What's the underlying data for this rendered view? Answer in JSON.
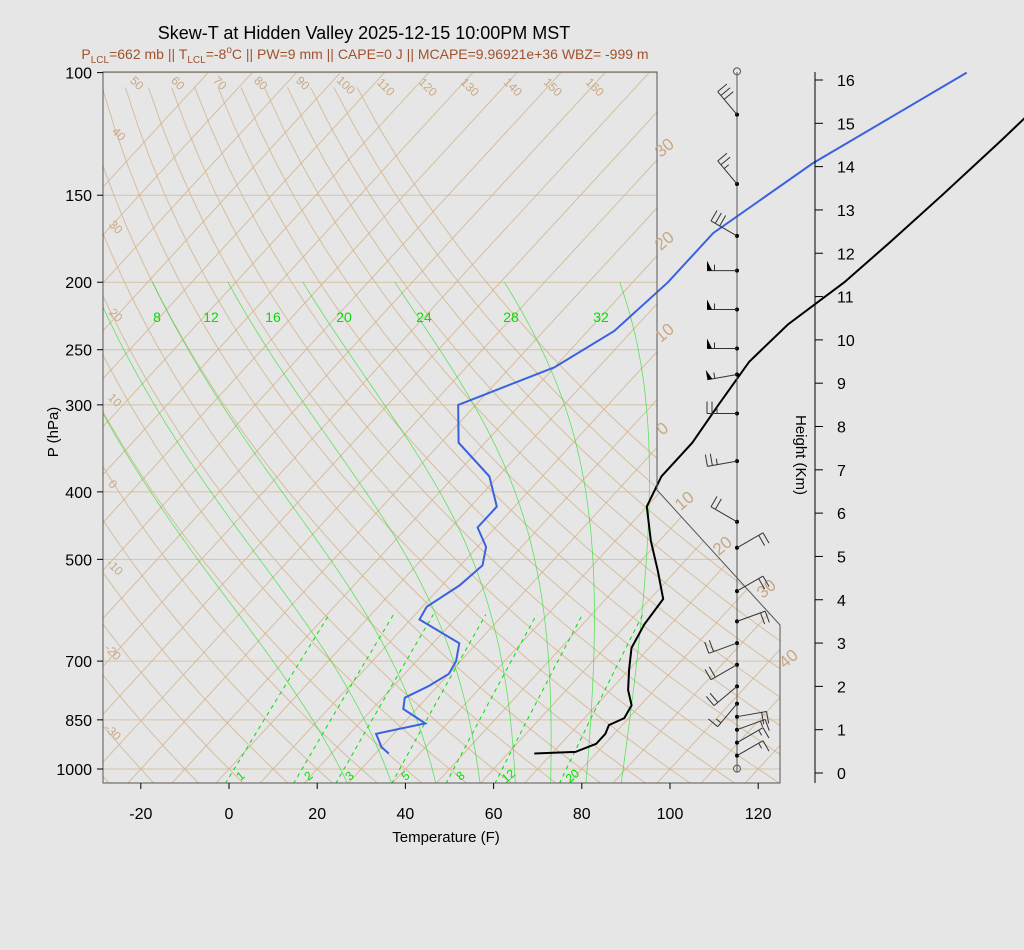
{
  "title": "Skew-T at Hidden Valley 2025-12-15 10:00PM MST",
  "subtitle": {
    "p_lcl_label": "P",
    "p_lcl_sub": "LCL",
    "p_lcl_value": "=662 mb || T",
    "t_lcl_sub": "LCL",
    "t_lcl_value": "=-8",
    "deg": "o",
    "rest": "C || PW=9 mm || CAPE=0 J || MCAPE=9.96921e+36 WBZ= -999 m"
  },
  "colors": {
    "background": "#e6e6e6",
    "temperature": "#000000",
    "dewpoint": "#3a62e0",
    "isotherm_adiabat": "#d2b48c",
    "mixing_ratio": "#00e000"
  },
  "chart_data": {
    "type": "line",
    "xlabel": "Temperature (F)",
    "ylabel": "P (hPa)",
    "y2label": "Height (Km)",
    "xlim": [
      -28,
      125
    ],
    "ylim": [
      1025,
      100
    ],
    "y_scale": "log",
    "x_ticks": [
      -20,
      0,
      20,
      40,
      60,
      80,
      100,
      120
    ],
    "p_ticks": [
      100,
      150,
      200,
      250,
      300,
      400,
      500,
      700,
      850,
      1000
    ],
    "height_ticks_km": [
      {
        "km": 0,
        "p": 1000
      },
      {
        "km": 1,
        "p": 915
      },
      {
        "km": 2,
        "p": 825
      },
      {
        "km": 3,
        "p": 700
      },
      {
        "km": 4,
        "p": 630
      },
      {
        "km": 5,
        "p": 540
      },
      {
        "km": 6,
        "p": 465
      },
      {
        "km": 7,
        "p": 400
      },
      {
        "km": 8,
        "p": 360
      },
      {
        "km": 9,
        "p": 300
      },
      {
        "km": 10,
        "p": 268
      },
      {
        "km": 11,
        "p": 236
      },
      {
        "km": 12,
        "p": 208
      },
      {
        "km": 13,
        "p": 172
      },
      {
        "km": 14,
        "p": 142
      },
      {
        "km": 15,
        "p": 118
      },
      {
        "km": 16,
        "p": 102
      }
    ],
    "isotherm_labels": [
      "-30",
      "-20",
      "-10",
      "0",
      "10",
      "20",
      "30",
      "40",
      "50",
      "60",
      "70",
      "80",
      "90",
      "100",
      "110",
      "120",
      "130",
      "140",
      "150",
      "160"
    ],
    "mixing_ratio_top_labels": [
      "8",
      "12",
      "16",
      "20",
      "24",
      "28",
      "32"
    ],
    "mixing_ratio_bottom_labels": [
      "1",
      "2",
      "3",
      "5",
      "8",
      "12",
      "20"
    ],
    "series": [
      {
        "name": "",
        "values": [
          {
            "p": 100,
            "t": 46
          },
          {
            "p": 125,
            "t": 44
          },
          {
            "p": 150,
            "t": 42
          },
          {
            "p": 175,
            "t": 40
          },
          {
            "p": 200,
            "t": 38
          },
          {
            "p": 230,
            "t": 34
          },
          {
            "p": 260,
            "t": 33
          },
          {
            "p": 300,
            "t": 35
          },
          {
            "p": 340,
            "t": 37
          },
          {
            "p": 380,
            "t": 37
          },
          {
            "p": 420,
            "t": 40
          },
          {
            "p": 470,
            "t": 48
          },
          {
            "p": 520,
            "t": 56
          },
          {
            "p": 570,
            "t": 63
          },
          {
            "p": 620,
            "t": 64
          },
          {
            "p": 670,
            "t": 66
          },
          {
            "p": 720,
            "t": 70
          },
          {
            "p": 770,
            "t": 74
          },
          {
            "p": 810,
            "t": 78
          },
          {
            "p": 845,
            "t": 79
          },
          {
            "p": 865,
            "t": 77
          },
          {
            "p": 890,
            "t": 78
          },
          {
            "p": 920,
            "t": 78
          },
          {
            "p": 945,
            "t": 75
          },
          {
            "p": 950,
            "t": 66
          }
        ]
      },
      {
        "name": "",
        "values": [
          {
            "p": 100,
            "t": 22
          },
          {
            "p": 135,
            "t": 6
          },
          {
            "p": 170,
            "t": -2
          },
          {
            "p": 200,
            "t": -2
          },
          {
            "p": 235,
            "t": -4
          },
          {
            "p": 265,
            "t": -10
          },
          {
            "p": 300,
            "t": -24
          },
          {
            "p": 340,
            "t": -16
          },
          {
            "p": 380,
            "t": -2
          },
          {
            "p": 420,
            "t": 6
          },
          {
            "p": 450,
            "t": 6
          },
          {
            "p": 480,
            "t": 12
          },
          {
            "p": 510,
            "t": 15
          },
          {
            "p": 545,
            "t": 14
          },
          {
            "p": 585,
            "t": 11
          },
          {
            "p": 610,
            "t": 12
          },
          {
            "p": 660,
            "t": 26
          },
          {
            "p": 700,
            "t": 29
          },
          {
            "p": 730,
            "t": 30
          },
          {
            "p": 760,
            "t": 28
          },
          {
            "p": 790,
            "t": 25
          },
          {
            "p": 820,
            "t": 27
          },
          {
            "p": 860,
            "t": 35
          },
          {
            "p": 890,
            "t": 26
          },
          {
            "p": 930,
            "t": 30
          },
          {
            "p": 950,
            "t": 33
          }
        ]
      }
    ],
    "wind_barbs": [
      {
        "km": 16.2,
        "dir": 0,
        "spd": 0
      },
      {
        "km": 15.2,
        "dir": 320,
        "spd": 30
      },
      {
        "km": 13.6,
        "dir": 320,
        "spd": 25
      },
      {
        "km": 12.4,
        "dir": 300,
        "spd": 30
      },
      {
        "km": 11.6,
        "dir": 270,
        "spd": 55
      },
      {
        "km": 10.7,
        "dir": 270,
        "spd": 55
      },
      {
        "km": 9.8,
        "dir": 270,
        "spd": 55
      },
      {
        "km": 9.2,
        "dir": 260,
        "spd": 55
      },
      {
        "km": 8.3,
        "dir": 270,
        "spd": 25
      },
      {
        "km": 7.2,
        "dir": 260,
        "spd": 25
      },
      {
        "km": 5.8,
        "dir": 300,
        "spd": 20
      },
      {
        "km": 5.2,
        "dir": 60,
        "spd": 20
      },
      {
        "km": 4.2,
        "dir": 60,
        "spd": 20
      },
      {
        "km": 3.5,
        "dir": 70,
        "spd": 20
      },
      {
        "km": 3.0,
        "dir": 250,
        "spd": 20
      },
      {
        "km": 2.5,
        "dir": 240,
        "spd": 20
      },
      {
        "km": 2.0,
        "dir": 230,
        "spd": 20
      },
      {
        "km": 1.6,
        "dir": 220,
        "spd": 15
      },
      {
        "km": 1.3,
        "dir": 80,
        "spd": 20
      },
      {
        "km": 1.0,
        "dir": 70,
        "spd": 15
      },
      {
        "km": 0.7,
        "dir": 60,
        "spd": 15
      },
      {
        "km": 0.4,
        "dir": 60,
        "spd": 15
      },
      {
        "km": 0.1,
        "dir": 0,
        "spd": 0
      }
    ]
  }
}
